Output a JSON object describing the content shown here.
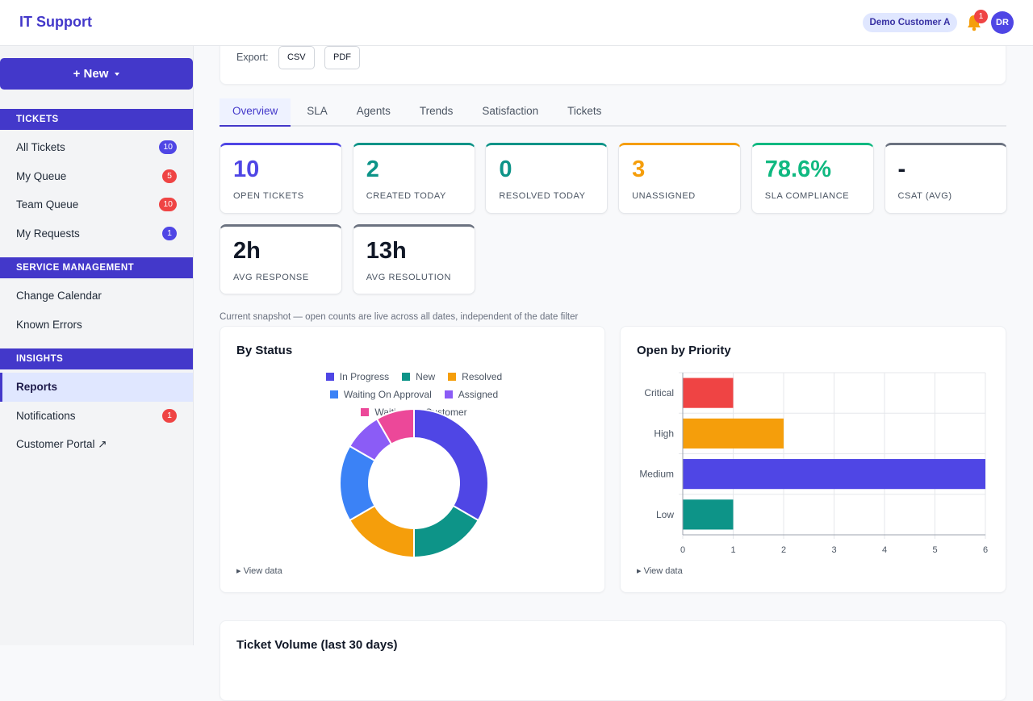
{
  "header": {
    "title": "IT Support",
    "customer": "Demo Customer A",
    "notification_count": 1,
    "avatar": "DR"
  },
  "sidebar": {
    "new_button": "+ New",
    "sections": [
      {
        "title": "TICKETS",
        "items": [
          {
            "label": "All Tickets",
            "badge": 10,
            "badge_color": "#4f46e5"
          },
          {
            "label": "My Queue",
            "badge": 5,
            "badge_color": "#ef4444"
          },
          {
            "label": "Team Queue",
            "badge": 10,
            "badge_color": "#ef4444"
          },
          {
            "label": "My Requests",
            "badge": 1,
            "badge_color": "#4f46e5"
          }
        ]
      },
      {
        "title": "SERVICE MANAGEMENT",
        "items": [
          {
            "label": "Change Calendar"
          },
          {
            "label": "Known Errors"
          }
        ]
      },
      {
        "title": "INSIGHTS",
        "items": [
          {
            "label": "Reports",
            "active": true
          },
          {
            "label": "Notifications",
            "badge": 1,
            "badge_color": "#ef4444"
          },
          {
            "label": "Customer Portal ↗"
          }
        ]
      }
    ]
  },
  "export": {
    "label": "Export:",
    "buttons": [
      "CSV",
      "PDF"
    ]
  },
  "tabs": {
    "items": [
      "Overview",
      "SLA",
      "Agents",
      "Trends",
      "Satisfaction",
      "Tickets"
    ],
    "active": 0
  },
  "kpis": [
    {
      "value": 10,
      "label": "OPEN TICKETS",
      "color": "#4f46e5",
      "value_color": "#4f46e5"
    },
    {
      "value": 2,
      "label": "CREATED TODAY",
      "color": "#0d9488",
      "value_color": "#0d9488"
    },
    {
      "value": 0,
      "label": "RESOLVED TODAY",
      "color": "#0d9488",
      "value_color": "#0d9488"
    },
    {
      "value": 3,
      "label": "UNASSIGNED",
      "color": "#f59e0b",
      "value_color": "#f59e0b"
    },
    {
      "value": "78.6%",
      "label": "SLA COMPLIANCE",
      "color": "#10b981",
      "value_color": "#10b981"
    },
    {
      "value": "-",
      "label": "CSAT (AVG)",
      "color": "#6b7280",
      "value_color": "#111827"
    },
    {
      "value": "2h",
      "label": "AVG RESPONSE",
      "color": "#6b7280",
      "value_color": "#111827"
    },
    {
      "value": "13h",
      "label": "AVG RESOLUTION",
      "color": "#6b7280",
      "value_color": "#111827"
    }
  ],
  "note": "Current snapshot — open counts are live across all dates, independent of the date filter",
  "chart_data": [
    {
      "type": "doughnut",
      "title": "By Status",
      "categories": [
        "In Progress",
        "New",
        "Resolved",
        "Waiting On Approval",
        "Assigned",
        "Waiting On Customer"
      ],
      "values": [
        4,
        2,
        2,
        2,
        1,
        1
      ],
      "colors": [
        "#4f46e5",
        "#0d9488",
        "#f59e0b",
        "#3b82f6",
        "#8b5cf6",
        "#ec4899"
      ]
    },
    {
      "type": "bar",
      "orientation": "horizontal",
      "title": "Open by Priority",
      "categories": [
        "Critical",
        "High",
        "Medium",
        "Low"
      ],
      "values": [
        1,
        2,
        6,
        1
      ],
      "colors": [
        "#ef4444",
        "#f59e0b",
        "#4f46e5",
        "#0d9488"
      ],
      "xlim": [
        0,
        6
      ],
      "xticks": [
        0,
        1,
        2,
        3,
        4,
        5,
        6
      ],
      "grid": true
    }
  ],
  "view_data": [
    "▸ View data",
    "▸ View data"
  ],
  "volume_title": "Ticket Volume (last 30 days)"
}
